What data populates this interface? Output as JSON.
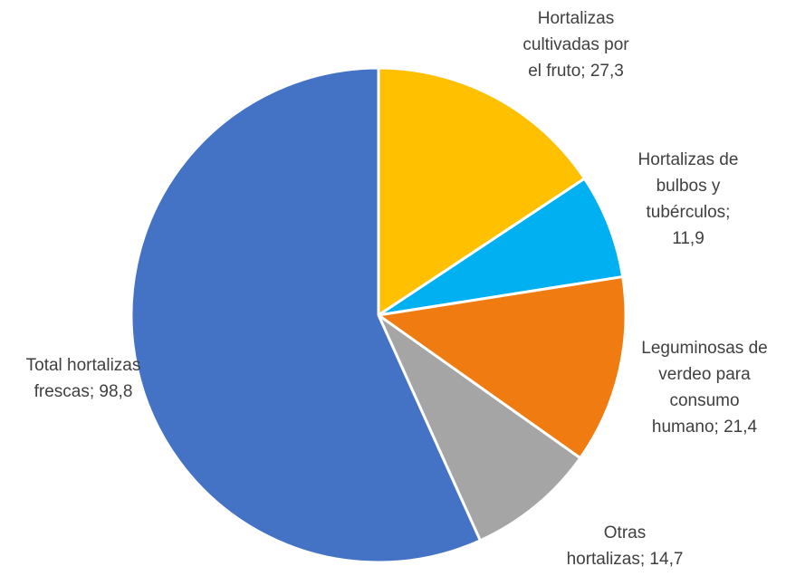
{
  "chart_data": {
    "type": "pie",
    "title": "",
    "start_angle_deg": 0,
    "direction": "clockwise",
    "slices": [
      {
        "label": "Hortalizas cultivadas por el fruto",
        "value": 27.3,
        "color": "#FFC000",
        "label_lines": [
          "Hortalizas",
          "cultivadas por",
          "el fruto; 27,3"
        ]
      },
      {
        "label": "Hortalizas de bulbos y tubérculos",
        "value": 11.9,
        "color": "#00B0F0",
        "label_lines": [
          "Hortalizas de",
          "bulbos y",
          "tubérculos;",
          "11,9"
        ]
      },
      {
        "label": "Leguminosas de verdeo para consumo humano",
        "value": 21.4,
        "color": "#F07B10",
        "label_lines": [
          "Leguminosas de",
          "verdeo para",
          "consumo",
          "humano; 21,4"
        ]
      },
      {
        "label": "Otras hortalizas",
        "value": 14.7,
        "color": "#A5A5A5",
        "label_lines": [
          "Otras",
          "hortalizas; 14,7"
        ]
      },
      {
        "label": "Total hortalizas frescas",
        "value": 98.8,
        "color": "#4472C4",
        "label_lines": [
          "Total hortalizas",
          "frescas; 98,8"
        ]
      }
    ]
  }
}
